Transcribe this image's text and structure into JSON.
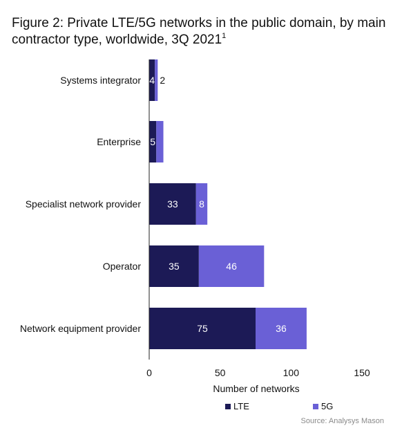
{
  "title": "Figure 2: Private LTE/5G networks in the public domain, by main contractor type, worldwide, 3Q 2021",
  "title_footnote": "1",
  "source": "Source: Analysys Mason",
  "colors": {
    "lte": "#1c1a56",
    "fiveg": "#6a60d6",
    "axis": "#222222"
  },
  "chart_data": {
    "type": "bar",
    "orientation": "horizontal",
    "stacked": true,
    "categories": [
      "Systems integrator",
      "Enterprise",
      "Specialist network provider",
      "Operator",
      "Network equipment provider"
    ],
    "series": [
      {
        "name": "LTE",
        "values": [
          4,
          5,
          33,
          35,
          75
        ],
        "color": "#1c1a56"
      },
      {
        "name": "5G",
        "values": [
          2,
          5,
          8,
          46,
          36
        ],
        "color": "#6a60d6"
      }
    ],
    "xlabel": "Number of networks",
    "xlim": [
      0,
      150
    ],
    "xticks": [
      0,
      50,
      100,
      150
    ],
    "grid": false,
    "legend_position": "bottom"
  }
}
